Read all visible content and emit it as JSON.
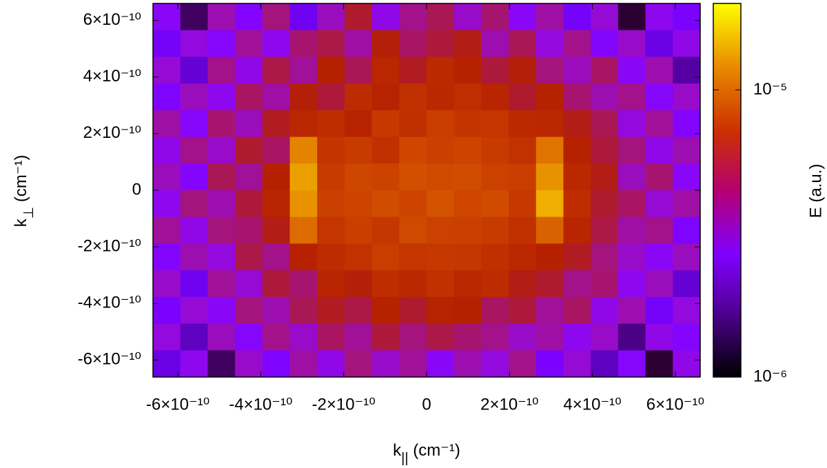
{
  "chart_data": {
    "type": "heatmap",
    "xlabel": [
      "k",
      "||",
      " (cm⁻¹)"
    ],
    "ylabel": [
      "k",
      "⊥",
      " (cm⁻¹)"
    ],
    "colorbar_label": "E (a.u.)",
    "colormap": "gnuplot",
    "log_color": true,
    "xlim": [
      -6.6e-10,
      6.6e-10
    ],
    "ylim": [
      -6.6e-10,
      6.6e-10
    ],
    "clim": [
      1e-06,
      2e-05
    ],
    "xticks": [
      {
        "value": -6e-10,
        "label": "-6×10⁻¹⁰"
      },
      {
        "value": -4e-10,
        "label": "-4×10⁻¹⁰"
      },
      {
        "value": -2e-10,
        "label": "-2×10⁻¹⁰"
      },
      0,
      {
        "value": 2e-10,
        "label": "2×10⁻¹⁰"
      },
      {
        "value": 4e-10,
        "label": "4×10⁻¹⁰"
      },
      {
        "value": 6e-10,
        "label": "6×10⁻¹⁰"
      }
    ],
    "yticks": [
      {
        "value": -6e-10,
        "label": "-6×10⁻¹⁰"
      },
      {
        "value": -4e-10,
        "label": "-4×10⁻¹⁰"
      },
      {
        "value": -2e-10,
        "label": "-2×10⁻¹⁰"
      },
      0,
      {
        "value": 2e-10,
        "label": "2×10⁻¹⁰"
      },
      {
        "value": 4e-10,
        "label": "4×10⁻¹⁰"
      },
      {
        "value": 6e-10,
        "label": "6×10⁻¹⁰"
      }
    ],
    "cticks": [
      {
        "value": 1e-06,
        "label": "10⁻⁶"
      },
      {
        "value": 1e-05,
        "label": "10⁻⁵"
      }
    ],
    "z": [
      [
        2.4e-06,
        1.2e-06,
        3.1e-06,
        2.2e-06,
        3.5e-06,
        1.8e-06,
        3e-06,
        4.1e-06,
        2.6e-06,
        3.4e-06,
        3.8e-06,
        2.9e-06,
        3.6e-06,
        2.4e-06,
        3.2e-06,
        1.9e-06,
        2.8e-06,
        1.1e-06,
        2.5e-06,
        2e-06
      ],
      [
        1.9e-06,
        2.7e-06,
        2.3e-06,
        3.3e-06,
        2.5e-06,
        3.6e-06,
        3.9e-06,
        3.2e-06,
        4.4e-06,
        3.7e-06,
        4e-06,
        4.3e-06,
        3.1e-06,
        3.8e-06,
        2.7e-06,
        3.4e-06,
        2.2e-06,
        2.9e-06,
        1.7e-06,
        2.6e-06
      ],
      [
        2.8e-06,
        1.6e-06,
        3.4e-06,
        2.6e-06,
        3.9e-06,
        3.3e-06,
        4.5e-06,
        3.8e-06,
        4.9e-06,
        4.2e-06,
        5.1e-06,
        4.6e-06,
        4e-06,
        4.4e-06,
        3.5e-06,
        3e-06,
        3.7e-06,
        2.4e-06,
        3.1e-06,
        1.4e-06
      ],
      [
        2.1e-06,
        3e-06,
        2.5e-06,
        3.7e-06,
        3.2e-06,
        4.4e-06,
        4e-06,
        5.2e-06,
        4.7e-06,
        5.6e-06,
        5e-06,
        5.4e-06,
        4.8e-06,
        4.1e-06,
        4.6e-06,
        3.6e-06,
        3.1e-06,
        3.4e-06,
        2.3e-06,
        2.9e-06
      ],
      [
        3.2e-06,
        2.3e-06,
        3.6e-06,
        3e-06,
        4.2e-06,
        4.9e-06,
        5.3e-06,
        4.7e-06,
        6.1e-06,
        5.5e-06,
        6.4e-06,
        5.8e-06,
        5.9e-06,
        5.1e-06,
        4.9e-06,
        4.3e-06,
        3.8e-06,
        2.7e-06,
        3.3e-06,
        2.2e-06
      ],
      [
        2.6e-06,
        3.4e-06,
        2.9e-06,
        4.1e-06,
        3.7e-06,
        1.1e-05,
        5.8e-06,
        6.3e-06,
        5.6e-06,
        7e-06,
        6.6e-06,
        6.9e-06,
        6.2e-06,
        5.7e-06,
        1e-05,
        4.6e-06,
        4e-06,
        3.5e-06,
        2.6e-06,
        3.1e-06
      ],
      [
        3e-06,
        2.2e-06,
        3.8e-06,
        3.3e-06,
        4.5e-06,
        1.3e-05,
        6.2e-06,
        7.1e-06,
        6.8e-06,
        7.6e-06,
        7.2e-06,
        7.4e-06,
        6.7e-06,
        6.4e-06,
        1.2e-05,
        5e-06,
        4.3e-06,
        3e-06,
        3.6e-06,
        2.4e-06
      ],
      [
        2.5e-06,
        3.5e-06,
        3.1e-06,
        4e-06,
        4.8e-06,
        1.2e-05,
        6.6e-06,
        6.9e-06,
        7.4e-06,
        6.9e-06,
        7.8e-06,
        7e-06,
        7.3e-06,
        6.1e-06,
        1.4e-05,
        5.3e-06,
        4.1e-06,
        3.7e-06,
        2.8e-06,
        3.2e-06
      ],
      [
        3.3e-06,
        2.6e-06,
        3.5e-06,
        3.6e-06,
        4.3e-06,
        9.5e-06,
        5.9e-06,
        6.5e-06,
        6e-06,
        7.2e-06,
        6.7e-06,
        6.6e-06,
        6.3e-06,
        5.6e-06,
        8.8e-06,
        4.8e-06,
        3.9e-06,
        3.2e-06,
        3.4e-06,
        2.1e-06
      ],
      [
        2.2e-06,
        3.1e-06,
        2.7e-06,
        3.9e-06,
        3.4e-06,
        4.6e-06,
        5.2e-06,
        5.7e-06,
        6.4e-06,
        5.9e-06,
        6.1e-06,
        6e-06,
        5.5e-06,
        5e-06,
        4.5e-06,
        4.2e-06,
        3.5e-06,
        2.9e-06,
        2.4e-06,
        3e-06
      ],
      [
        2.9e-06,
        1.8e-06,
        3.3e-06,
        2.8e-06,
        4e-06,
        3.6e-06,
        4.8e-06,
        4.4e-06,
        5.3e-06,
        5e-06,
        5.6e-06,
        4.9e-06,
        5.2e-06,
        4.3e-06,
        4.1e-06,
        3.4e-06,
        3.6e-06,
        2.5e-06,
        3e-06,
        1.6e-06
      ],
      [
        2e-06,
        2.8e-06,
        2.4e-06,
        3.5e-06,
        3.1e-06,
        3.8e-06,
        4.2e-06,
        3.9e-06,
        4.6e-06,
        4.1e-06,
        4.7e-06,
        4.5e-06,
        3.7e-06,
        4e-06,
        3.3e-06,
        3.7e-06,
        2.6e-06,
        3.1e-06,
        1.9e-06,
        2.7e-06
      ],
      [
        2.7e-06,
        1.5e-06,
        3e-06,
        2.3e-06,
        3.4e-06,
        2.9e-06,
        3.7e-06,
        3.3e-06,
        4e-06,
        3.5e-06,
        3.9e-06,
        3.6e-06,
        3.4e-06,
        2.9e-06,
        3.2e-06,
        2.5e-06,
        2.9e-06,
        1.3e-06,
        2.6e-06,
        2.2e-06
      ],
      [
        1.7e-06,
        2.5e-06,
        1.2e-06,
        2.9e-06,
        2.1e-06,
        3.2e-06,
        2.6e-06,
        3.5e-06,
        2.9e-06,
        3.3e-06,
        2.4e-06,
        3.1e-06,
        2.7e-06,
        3.4e-06,
        2e-06,
        2.8e-06,
        1.5e-06,
        2.3e-06,
        1.1e-06,
        2.6e-06
      ]
    ]
  }
}
